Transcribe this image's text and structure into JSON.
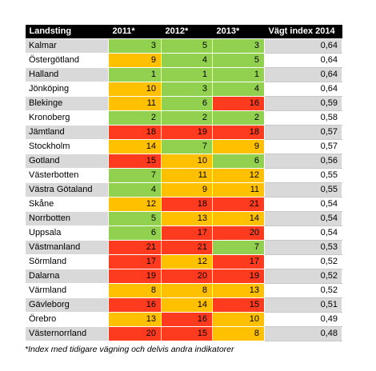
{
  "table": {
    "headers": [
      "Landsting",
      "2011*",
      "2012*",
      "2013*",
      "Vägt index 2014"
    ],
    "rows": [
      {
        "name": "Kalmar",
        "y2011": 3,
        "y2012": 5,
        "y2013": 3,
        "index": "0,64"
      },
      {
        "name": "Östergötland",
        "y2011": 9,
        "y2012": 4,
        "y2013": 5,
        "index": "0,64"
      },
      {
        "name": "Halland",
        "y2011": 1,
        "y2012": 1,
        "y2013": 1,
        "index": "0,64"
      },
      {
        "name": "Jönköping",
        "y2011": 10,
        "y2012": 3,
        "y2013": 4,
        "index": "0,64"
      },
      {
        "name": "Blekinge",
        "y2011": 11,
        "y2012": 6,
        "y2013": 16,
        "index": "0,59"
      },
      {
        "name": "Kronoberg",
        "y2011": 2,
        "y2012": 2,
        "y2013": 2,
        "index": "0,58"
      },
      {
        "name": "Jämtland",
        "y2011": 18,
        "y2012": 19,
        "y2013": 18,
        "index": "0,57"
      },
      {
        "name": "Stockholm",
        "y2011": 14,
        "y2012": 7,
        "y2013": 9,
        "index": "0,57"
      },
      {
        "name": "Gotland",
        "y2011": 15,
        "y2012": 10,
        "y2013": 6,
        "index": "0,56"
      },
      {
        "name": "Västerbotten",
        "y2011": 7,
        "y2012": 11,
        "y2013": 12,
        "index": "0,55"
      },
      {
        "name": "Västra Götaland",
        "y2011": 4,
        "y2012": 9,
        "y2013": 11,
        "index": "0,55"
      },
      {
        "name": "Skåne",
        "y2011": 12,
        "y2012": 18,
        "y2013": 21,
        "index": "0,54"
      },
      {
        "name": "Norrbotten",
        "y2011": 5,
        "y2012": 13,
        "y2013": 14,
        "index": "0,54"
      },
      {
        "name": "Uppsala",
        "y2011": 6,
        "y2012": 17,
        "y2013": 20,
        "index": "0,54"
      },
      {
        "name": "Västmanland",
        "y2011": 21,
        "y2012": 21,
        "y2013": 7,
        "index": "0,53"
      },
      {
        "name": "Sörmland",
        "y2011": 17,
        "y2012": 12,
        "y2013": 17,
        "index": "0,52"
      },
      {
        "name": "Dalarna",
        "y2011": 19,
        "y2012": 20,
        "y2013": 19,
        "index": "0,52"
      },
      {
        "name": "Värmland",
        "y2011": 8,
        "y2012": 8,
        "y2013": 13,
        "index": "0,52"
      },
      {
        "name": "Gävleborg",
        "y2011": 16,
        "y2012": 14,
        "y2013": 15,
        "index": "0,51"
      },
      {
        "name": "Örebro",
        "y2011": 13,
        "y2012": 16,
        "y2013": 10,
        "index": "0,49"
      },
      {
        "name": "Västernorrland",
        "y2011": 20,
        "y2012": 15,
        "y2013": 8,
        "index": "0,48"
      }
    ]
  },
  "colors": {
    "green": "#92d050",
    "orange": "#ffc000",
    "red": "#ff3b1f"
  },
  "footnote": "*Index med tidigare vägning och delvis andra indikatorer"
}
